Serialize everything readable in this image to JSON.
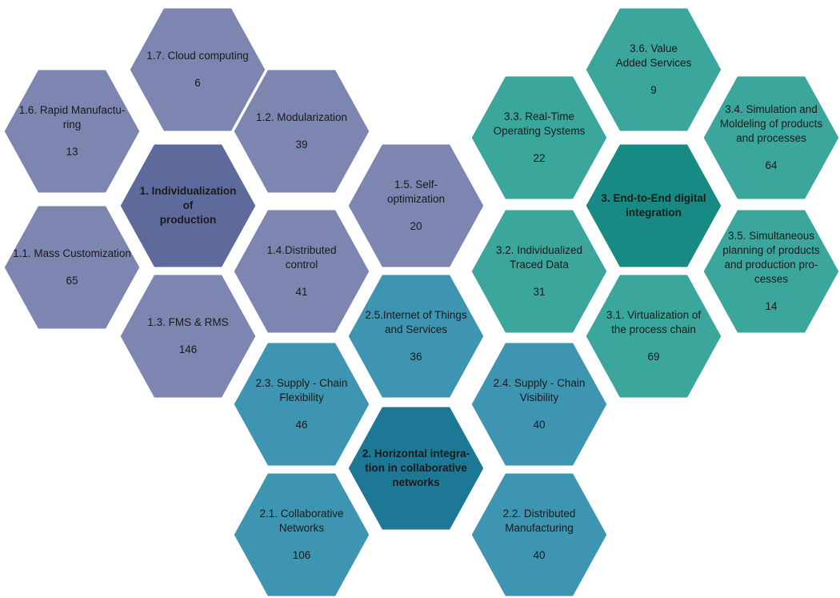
{
  "colors": {
    "group1": "#7d86b0",
    "group1_core": "#5d6a9b",
    "group2": "#3e95b1",
    "group2_core": "#1d7896",
    "group3": "#3aa69c",
    "group3_core": "#178b83",
    "stroke": "#ffffff"
  },
  "hexes": [
    {
      "id": "h17",
      "group": 1,
      "core": false,
      "label": "1.7. Cloud computing",
      "count": "6"
    },
    {
      "id": "h16",
      "group": 1,
      "core": false,
      "label": "1.6. Rapid Manufactu-\nring",
      "count": "13"
    },
    {
      "id": "h12",
      "group": 1,
      "core": false,
      "label": "1.2. Modularization",
      "count": "39"
    },
    {
      "id": "h1",
      "group": 1,
      "core": true,
      "label": "1. Individualization\nof\nproduction",
      "count": ""
    },
    {
      "id": "h15",
      "group": 1,
      "core": false,
      "label": "1.5. Self-\noptimization",
      "count": "20"
    },
    {
      "id": "h11",
      "group": 1,
      "core": false,
      "label": "1.1. Mass Customization",
      "count": "65"
    },
    {
      "id": "h14",
      "group": 1,
      "core": false,
      "label": "1.4.Distributed\ncontrol",
      "count": "41"
    },
    {
      "id": "h13",
      "group": 1,
      "core": false,
      "label": "1.3. FMS & RMS",
      "count": "146"
    },
    {
      "id": "h36",
      "group": 3,
      "core": false,
      "label": "3.6. Value\nAdded Services",
      "count": "9"
    },
    {
      "id": "h33",
      "group": 3,
      "core": false,
      "label": "3.3. Real-Time\nOperating Systems",
      "count": "22"
    },
    {
      "id": "h34",
      "group": 3,
      "core": false,
      "label": "3.4. Simulation and\nMoldeling of products\nand processes",
      "count": "64"
    },
    {
      "id": "h3",
      "group": 3,
      "core": true,
      "label": "3. End-to-End digital\nintegration",
      "count": ""
    },
    {
      "id": "h32",
      "group": 3,
      "core": false,
      "label": "3.2. Individualized\nTraced Data",
      "count": "31"
    },
    {
      "id": "h35",
      "group": 3,
      "core": false,
      "label": "3.5. Simultaneous\nplanning of products\nand production pro-\ncesses",
      "count": "14"
    },
    {
      "id": "h31",
      "group": 3,
      "core": false,
      "label": "3.1. Virtualization of\nthe process chain",
      "count": "69"
    },
    {
      "id": "h25",
      "group": 2,
      "core": false,
      "label": "2.5.Internet of Things\nand Services",
      "count": "36"
    },
    {
      "id": "h23",
      "group": 2,
      "core": false,
      "label": "2.3. Supply - Chain\nFlexibility",
      "count": "46"
    },
    {
      "id": "h24",
      "group": 2,
      "core": false,
      "label": "2.4. Supply - Chain\nVisibility",
      "count": "40"
    },
    {
      "id": "h2",
      "group": 2,
      "core": true,
      "label": "2. Horizontal integra-\ntion in collaborative\nnetworks",
      "count": ""
    },
    {
      "id": "h21",
      "group": 2,
      "core": false,
      "label": "2.1. Collaborative\nNetworks",
      "count": "106"
    },
    {
      "id": "h22",
      "group": 2,
      "core": false,
      "label": "2.2. Distributed\nManufacturing",
      "count": "40"
    }
  ]
}
